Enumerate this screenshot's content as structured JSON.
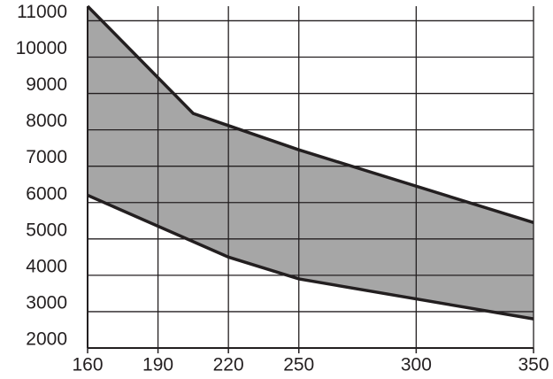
{
  "chart_data": {
    "type": "band",
    "series": [
      {
        "name": "upper",
        "color": "#231f20",
        "x": [
          160,
          205,
          250,
          350
        ],
        "values": [
          11400,
          8450,
          7450,
          5450
        ]
      },
      {
        "name": "lower",
        "color": "#231f20",
        "x": [
          160,
          220,
          250,
          350
        ],
        "values": [
          6200,
          4500,
          3900,
          2800
        ]
      }
    ],
    "fill_color": "#a6a6a6",
    "xlim": [
      160,
      350
    ],
    "xticks": [
      160,
      190,
      220,
      250,
      300,
      350
    ],
    "ylim": [
      2000,
      11400
    ],
    "yticks": [
      2000,
      3000,
      4000,
      5000,
      6000,
      7000,
      8000,
      9000,
      10000,
      11000
    ],
    "grid": true
  }
}
